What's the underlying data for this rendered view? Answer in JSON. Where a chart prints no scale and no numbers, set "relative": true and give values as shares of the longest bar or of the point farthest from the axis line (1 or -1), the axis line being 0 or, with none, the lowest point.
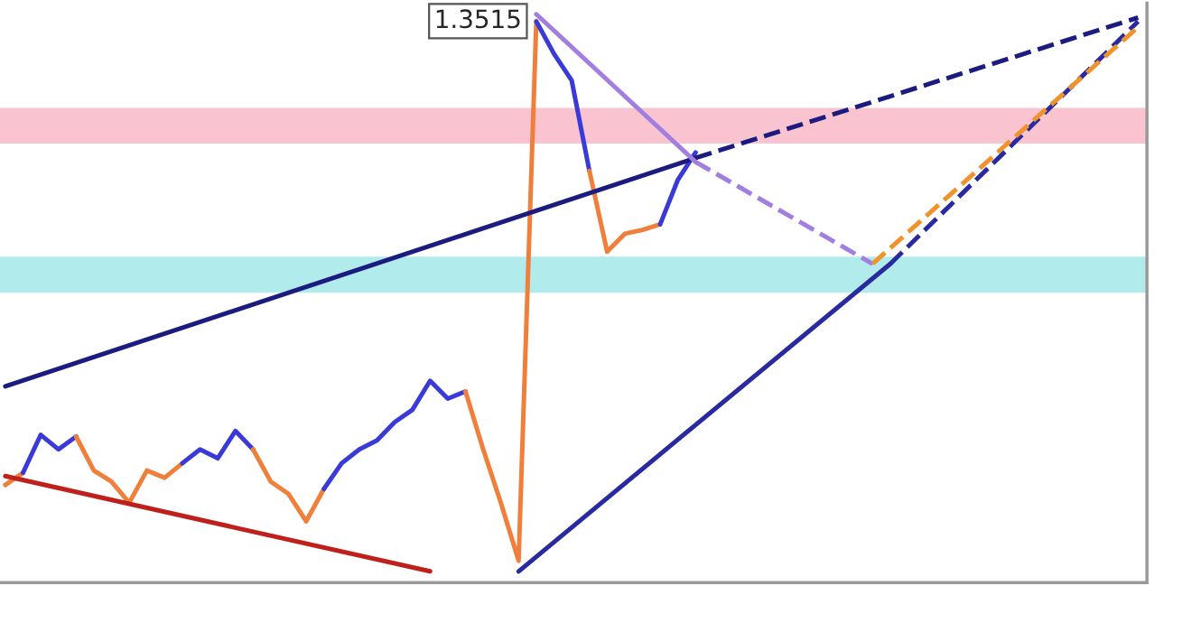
{
  "chart_data": {
    "type": "line",
    "relative": true,
    "legend": false,
    "grid": false,
    "categories": [
      null,
      null,
      null,
      null,
      null,
      null,
      null,
      null,
      null,
      null,
      null,
      null,
      null,
      null,
      null,
      null,
      null,
      null,
      null,
      null,
      null,
      null,
      null,
      null,
      null,
      null,
      null,
      null,
      null,
      null,
      null,
      null,
      null,
      null,
      null,
      null,
      null,
      null,
      null,
      null,
      null,
      null,
      null,
      null,
      null,
      null,
      null,
      null,
      null,
      null,
      null,
      null,
      null,
      null,
      null,
      null,
      null,
      null,
      null,
      null,
      null,
      null,
      null,
      null,
      null
    ],
    "annotations": [
      "1.3515"
    ],
    "bands": [
      {
        "axis": "y",
        "from": 0.768,
        "to": 0.832,
        "color": "#f9c4cf"
      },
      {
        "axis": "y",
        "from": 0.5,
        "to": 0.565,
        "color": "#b2ebeb"
      }
    ],
    "series": [
      {
        "color": "#f07f3c",
        "values": [
          0.155,
          0.177,
          null,
          null,
          null,
          null,
          null,
          null,
          null,
          null,
          null,
          null,
          null,
          null,
          null,
          null,
          null,
          null,
          null,
          null,
          null,
          null,
          null,
          null,
          null,
          null,
          null,
          null,
          null,
          null,
          null,
          null,
          null,
          null,
          null,
          null,
          null,
          null,
          null,
          null,
          null,
          null,
          null,
          null,
          null,
          null,
          null,
          null,
          null,
          null,
          null,
          null,
          null,
          null,
          null,
          null,
          null,
          null,
          null,
          null,
          null,
          null,
          null,
          null,
          null
        ]
      },
      {
        "color": "#3a3ad8",
        "values": [
          null,
          0.177,
          0.245,
          0.219,
          0.242,
          null,
          null,
          null,
          null,
          null,
          null,
          null,
          null,
          null,
          null,
          null,
          null,
          null,
          null,
          null,
          null,
          null,
          null,
          null,
          null,
          null,
          null,
          null,
          null,
          null,
          null,
          null,
          null,
          null,
          null,
          null,
          null,
          null,
          null,
          null,
          null,
          null,
          null,
          null,
          null,
          null,
          null,
          null,
          null,
          null,
          null,
          null,
          null,
          null,
          null,
          null,
          null,
          null,
          null,
          null,
          null,
          null,
          null,
          null,
          null
        ]
      },
      {
        "color": "#f07f3c",
        "values": [
          null,
          null,
          null,
          null,
          0.242,
          0.181,
          0.161,
          0.123,
          0.181,
          0.168,
          0.194,
          null,
          null,
          null,
          null,
          null,
          null,
          null,
          null,
          null,
          null,
          null,
          null,
          null,
          null,
          null,
          null,
          null,
          null,
          null,
          null,
          null,
          null,
          null,
          null,
          null,
          null,
          null,
          null,
          null,
          null,
          null,
          null,
          null,
          null,
          null,
          null,
          null,
          null,
          null,
          null,
          null,
          null,
          null,
          null,
          null,
          null,
          null,
          null,
          null,
          null,
          null,
          null,
          null,
          null
        ]
      },
      {
        "color": "#3a3ad8",
        "values": [
          null,
          null,
          null,
          null,
          null,
          null,
          null,
          null,
          null,
          null,
          0.194,
          0.219,
          0.203,
          0.252,
          0.219,
          null,
          null,
          null,
          null,
          null,
          null,
          null,
          null,
          null,
          null,
          null,
          null,
          null,
          null,
          null,
          null,
          null,
          null,
          null,
          null,
          null,
          null,
          null,
          null,
          null,
          null,
          null,
          null,
          null,
          null,
          null,
          null,
          null,
          null,
          null,
          null,
          null,
          null,
          null,
          null,
          null,
          null,
          null,
          null,
          null,
          null,
          null,
          null,
          null,
          null
        ]
      },
      {
        "color": "#f07f3c",
        "values": [
          null,
          null,
          null,
          null,
          null,
          null,
          null,
          null,
          null,
          null,
          null,
          null,
          null,
          null,
          0.219,
          0.161,
          0.139,
          0.09,
          0.148,
          null,
          null,
          null,
          null,
          null,
          null,
          null,
          null,
          null,
          null,
          null,
          null,
          null,
          null,
          null,
          null,
          null,
          null,
          null,
          null,
          null,
          null,
          null,
          null,
          null,
          null,
          null,
          null,
          null,
          null,
          null,
          null,
          null,
          null,
          null,
          null,
          null,
          null,
          null,
          null,
          null,
          null,
          null,
          null,
          null,
          null
        ]
      },
      {
        "color": "#3a3ad8",
        "values": [
          null,
          null,
          null,
          null,
          null,
          null,
          null,
          null,
          null,
          null,
          null,
          null,
          null,
          null,
          null,
          null,
          null,
          null,
          0.148,
          0.194,
          0.219,
          0.235,
          0.268,
          0.29,
          0.342,
          0.31,
          0.323,
          null,
          null,
          null,
          null,
          null,
          null,
          null,
          null,
          null,
          null,
          null,
          null,
          null,
          null,
          null,
          null,
          null,
          null,
          null,
          null,
          null,
          null,
          null,
          null,
          null,
          null,
          null,
          null,
          null,
          null,
          null,
          null,
          null,
          null,
          null,
          null,
          null,
          null
        ]
      },
      {
        "color": "#f07f3c",
        "values": [
          null,
          null,
          null,
          null,
          null,
          null,
          null,
          null,
          null,
          null,
          null,
          null,
          null,
          null,
          null,
          null,
          null,
          null,
          null,
          null,
          null,
          null,
          null,
          null,
          null,
          null,
          0.323,
          0.219,
          0.123,
          0.019,
          0.987,
          null,
          null,
          null,
          null,
          null,
          null,
          null,
          null,
          null,
          null,
          null,
          null,
          null,
          null,
          null,
          null,
          null,
          null,
          null,
          null,
          null,
          null,
          null,
          null,
          null,
          null,
          null,
          null,
          null,
          null,
          null,
          null,
          null,
          null
        ]
      },
      {
        "color": "#3a3ad8",
        "values": [
          null,
          null,
          null,
          null,
          null,
          null,
          null,
          null,
          null,
          null,
          null,
          null,
          null,
          null,
          null,
          null,
          null,
          null,
          null,
          null,
          null,
          null,
          null,
          null,
          null,
          null,
          null,
          null,
          null,
          null,
          0.987,
          0.929,
          0.881,
          0.719,
          null,
          null,
          null,
          null,
          null,
          null,
          null,
          null,
          null,
          null,
          null,
          null,
          null,
          null,
          null,
          null,
          null,
          null,
          null,
          null,
          null,
          null,
          null,
          null,
          null,
          null,
          null,
          null,
          null,
          null,
          null
        ]
      },
      {
        "color": "#f07f3c",
        "values": [
          null,
          null,
          null,
          null,
          null,
          null,
          null,
          null,
          null,
          null,
          null,
          null,
          null,
          null,
          null,
          null,
          null,
          null,
          null,
          null,
          null,
          null,
          null,
          null,
          null,
          null,
          null,
          null,
          null,
          null,
          null,
          null,
          null,
          0.719,
          0.574,
          0.606,
          0.613,
          0.623,
          null,
          null,
          null,
          null,
          null,
          null,
          null,
          null,
          null,
          null,
          null,
          null,
          null,
          null,
          null,
          null,
          null,
          null,
          null,
          null,
          null,
          null,
          null,
          null,
          null,
          null,
          null
        ]
      },
      {
        "color": "#3a3ad8",
        "values": [
          null,
          null,
          null,
          null,
          null,
          null,
          null,
          null,
          null,
          null,
          null,
          null,
          null,
          null,
          null,
          null,
          null,
          null,
          null,
          null,
          null,
          null,
          null,
          null,
          null,
          null,
          null,
          null,
          null,
          null,
          null,
          null,
          null,
          null,
          null,
          null,
          null,
          0.623,
          0.703,
          0.752,
          null,
          null,
          null,
          null,
          null,
          null,
          null,
          null,
          null,
          null,
          null,
          null,
          null,
          null,
          null,
          null,
          null,
          null,
          null,
          null,
          null,
          null,
          null,
          null,
          null
        ]
      },
      {
        "color": "#1c1c80",
        "line_style": "solid",
        "values": [
          0.332,
          null,
          null,
          null,
          null,
          null,
          null,
          null,
          null,
          null,
          null,
          null,
          null,
          null,
          null,
          null,
          null,
          null,
          null,
          null,
          null,
          null,
          null,
          null,
          null,
          null,
          null,
          null,
          null,
          null,
          null,
          null,
          null,
          null,
          null,
          null,
          null,
          null,
          null,
          0.742,
          null,
          null,
          null,
          null,
          null,
          null,
          null,
          null,
          null,
          null,
          null,
          null,
          null,
          null,
          null,
          null,
          null,
          null,
          null,
          null,
          null,
          null,
          null,
          null,
          null
        ]
      },
      {
        "color": "#1c1c80",
        "line_style": "dashed",
        "values": [
          null,
          null,
          null,
          null,
          null,
          null,
          null,
          null,
          null,
          null,
          null,
          null,
          null,
          null,
          null,
          null,
          null,
          null,
          null,
          null,
          null,
          null,
          null,
          null,
          null,
          null,
          null,
          null,
          null,
          null,
          null,
          null,
          null,
          null,
          null,
          null,
          null,
          null,
          null,
          0.742,
          null,
          null,
          null,
          null,
          null,
          null,
          null,
          null,
          null,
          null,
          null,
          null,
          null,
          null,
          null,
          null,
          null,
          null,
          null,
          null,
          null,
          null,
          null,
          null,
          0.994
        ]
      },
      {
        "color": "#2a2aa0",
        "line_style": "solid",
        "values": [
          null,
          null,
          null,
          null,
          null,
          null,
          null,
          null,
          null,
          null,
          null,
          null,
          null,
          null,
          null,
          null,
          null,
          null,
          null,
          null,
          null,
          null,
          null,
          null,
          null,
          null,
          null,
          null,
          null,
          0,
          null,
          null,
          null,
          null,
          null,
          null,
          null,
          null,
          null,
          null,
          null,
          null,
          null,
          null,
          null,
          null,
          null,
          null,
          null,
          null,
          0.552,
          null,
          null,
          null,
          null,
          null,
          null,
          null,
          null,
          null,
          null,
          null,
          null,
          null,
          null
        ]
      },
      {
        "color": "#2a2aa0",
        "line_style": "dashed",
        "values": [
          null,
          null,
          null,
          null,
          null,
          null,
          null,
          null,
          null,
          null,
          null,
          null,
          null,
          null,
          null,
          null,
          null,
          null,
          null,
          null,
          null,
          null,
          null,
          null,
          null,
          null,
          null,
          null,
          null,
          null,
          null,
          null,
          null,
          null,
          null,
          null,
          null,
          null,
          null,
          null,
          null,
          null,
          null,
          null,
          null,
          null,
          null,
          null,
          null,
          null,
          0.552,
          null,
          null,
          null,
          null,
          null,
          null,
          null,
          null,
          null,
          null,
          null,
          null,
          null,
          0.987
        ]
      },
      {
        "color": "#a27ee0",
        "line_style": "solid",
        "values": [
          null,
          null,
          null,
          null,
          null,
          null,
          null,
          null,
          null,
          null,
          null,
          null,
          null,
          null,
          null,
          null,
          null,
          null,
          null,
          null,
          null,
          null,
          null,
          null,
          null,
          null,
          null,
          null,
          null,
          null,
          1,
          null,
          null,
          null,
          null,
          null,
          null,
          null,
          null,
          0.735,
          null,
          null,
          null,
          null,
          null,
          null,
          null,
          null,
          null,
          null,
          null,
          null,
          null,
          null,
          null,
          null,
          null,
          null,
          null,
          null,
          null,
          null,
          null,
          null,
          null
        ]
      },
      {
        "color": "#a27ee0",
        "line_style": "dashed",
        "values": [
          null,
          null,
          null,
          null,
          null,
          null,
          null,
          null,
          null,
          null,
          null,
          null,
          null,
          null,
          null,
          null,
          null,
          null,
          null,
          null,
          null,
          null,
          null,
          null,
          null,
          null,
          null,
          null,
          null,
          null,
          null,
          null,
          null,
          null,
          null,
          null,
          null,
          null,
          null,
          0.735,
          null,
          null,
          null,
          null,
          null,
          null,
          null,
          null,
          null,
          0.552,
          null,
          null,
          null,
          null,
          null,
          null,
          null,
          null,
          null,
          null,
          null,
          null,
          null,
          null,
          null
        ]
      },
      {
        "color": "#f0932c",
        "line_style": "dashed",
        "values": [
          null,
          null,
          null,
          null,
          null,
          null,
          null,
          null,
          null,
          null,
          null,
          null,
          null,
          null,
          null,
          null,
          null,
          null,
          null,
          null,
          null,
          null,
          null,
          null,
          null,
          null,
          null,
          null,
          null,
          null,
          null,
          null,
          null,
          null,
          null,
          null,
          null,
          null,
          null,
          null,
          null,
          null,
          null,
          null,
          null,
          null,
          null,
          null,
          null,
          0.552,
          null,
          null,
          null,
          null,
          null,
          null,
          null,
          null,
          null,
          null,
          null,
          null,
          null,
          null,
          0.977
        ]
      },
      {
        "color": "#c0201c",
        "line_style": "solid",
        "values": [
          0.171,
          null,
          null,
          null,
          null,
          null,
          null,
          null,
          null,
          null,
          null,
          null,
          null,
          null,
          null,
          null,
          null,
          null,
          null,
          null,
          null,
          null,
          null,
          null,
          0,
          null,
          null,
          null,
          null,
          null,
          null,
          null,
          null,
          null,
          null,
          null,
          null,
          null,
          null,
          null,
          null,
          null,
          null,
          null,
          null,
          null,
          null,
          null,
          null,
          null,
          null,
          null,
          null,
          null,
          null,
          null,
          null,
          null,
          null,
          null,
          null,
          null,
          null,
          null,
          null
        ]
      }
    ]
  }
}
